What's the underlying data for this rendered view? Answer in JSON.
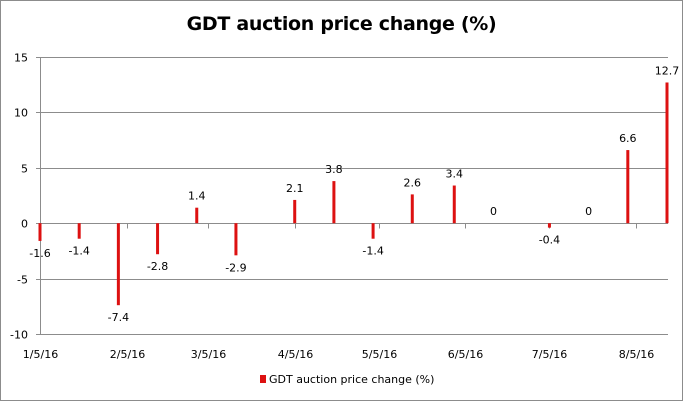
{
  "chart_data": {
    "type": "bar",
    "title": "GDT auction price change (%)",
    "xlabel": "",
    "ylabel": "",
    "ylim": [
      -10,
      15
    ],
    "yticks": [
      15,
      10,
      5,
      0,
      -5,
      -10
    ],
    "grid": true,
    "x_axis": {
      "kind": "date",
      "tick_labels": [
        "1/5/16",
        "2/5/16",
        "3/5/16",
        "4/5/16",
        "5/5/16",
        "6/5/16",
        "7/5/16",
        "8/5/16"
      ],
      "tick_dates": [
        "2016-01-05",
        "2016-02-05",
        "2016-03-05",
        "2016-04-05",
        "2016-05-05",
        "2016-06-05",
        "2016-07-05",
        "2016-08-05"
      ],
      "range": [
        "2016-01-05",
        "2016-08-16"
      ]
    },
    "legend": {
      "position": "bottom",
      "entries": [
        "GDT auction price change (%)"
      ]
    },
    "series": [
      {
        "name": "GDT auction price change (%)",
        "color": "#dd1111",
        "points": [
          {
            "date": "2016-01-05",
            "value": -1.6,
            "label": "-1.6"
          },
          {
            "date": "2016-01-19",
            "value": -1.4,
            "label": "-1.4"
          },
          {
            "date": "2016-02-02",
            "value": -7.4,
            "label": "-7.4"
          },
          {
            "date": "2016-02-16",
            "value": -2.8,
            "label": "-2.8"
          },
          {
            "date": "2016-03-01",
            "value": 1.4,
            "label": "1.4"
          },
          {
            "date": "2016-03-15",
            "value": -2.9,
            "label": "-2.9"
          },
          {
            "date": "2016-04-05",
            "value": 2.1,
            "label": "2.1"
          },
          {
            "date": "2016-04-19",
            "value": 3.8,
            "label": "3.8"
          },
          {
            "date": "2016-05-03",
            "value": -1.4,
            "label": "-1.4"
          },
          {
            "date": "2016-05-17",
            "value": 2.6,
            "label": "2.6"
          },
          {
            "date": "2016-06-01",
            "value": 3.4,
            "label": "3.4"
          },
          {
            "date": "2016-06-15",
            "value": 0,
            "label": "0"
          },
          {
            "date": "2016-07-05",
            "value": -0.4,
            "label": "-0.4"
          },
          {
            "date": "2016-07-19",
            "value": 0,
            "label": "0"
          },
          {
            "date": "2016-08-02",
            "value": 6.6,
            "label": "6.6"
          },
          {
            "date": "2016-08-16",
            "value": 12.7,
            "label": "12.7"
          }
        ]
      }
    ]
  }
}
